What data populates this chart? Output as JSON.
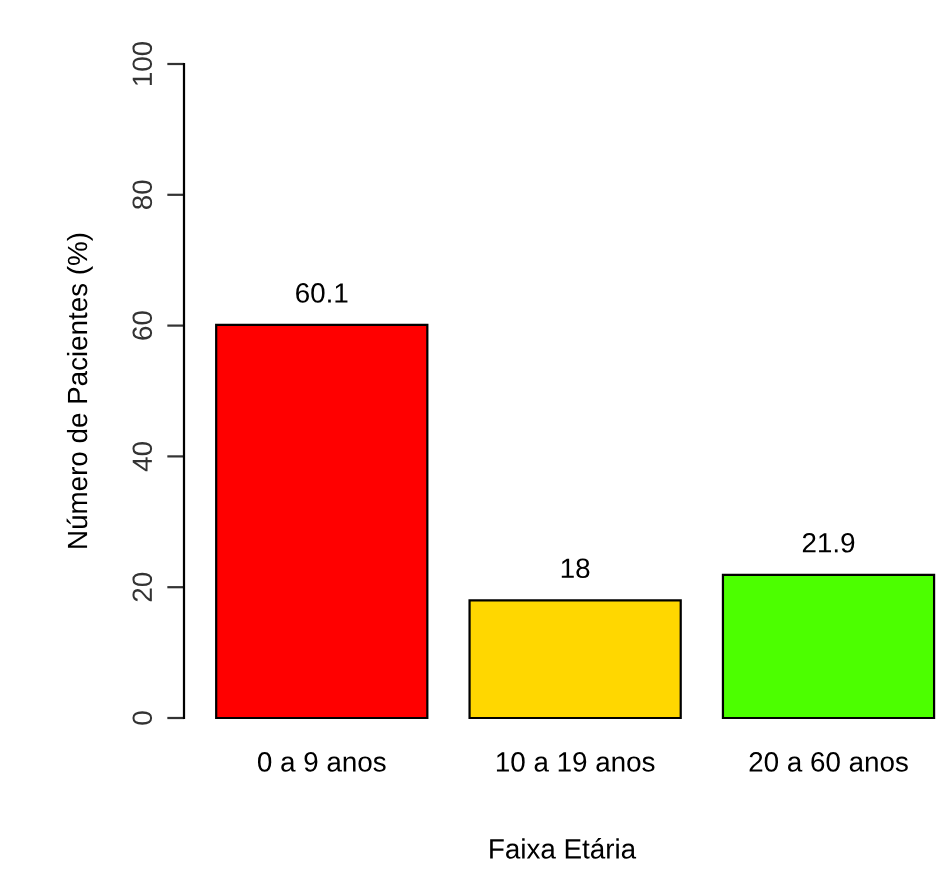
{
  "chart_data": {
    "type": "bar",
    "xlabel": "Faixa Etária",
    "ylabel": "Número de Pacientes (%)",
    "categories": [
      "0 a 9 anos",
      "10 a 19 anos",
      "20 a 60 anos"
    ],
    "values": [
      60.1,
      18,
      21.9
    ],
    "colors": [
      "#ff0000",
      "#ffd700",
      "#4cff00"
    ],
    "ylim": [
      0,
      100
    ],
    "yticks": [
      0,
      20,
      40,
      60,
      80,
      100
    ],
    "data_labels": true,
    "grid": false,
    "legend": false
  }
}
